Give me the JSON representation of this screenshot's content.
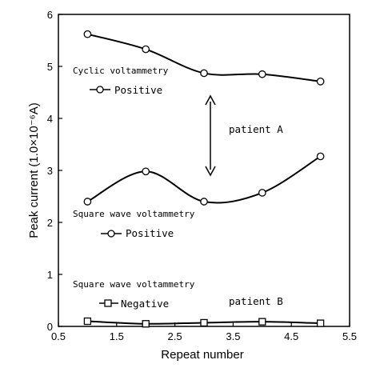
{
  "chart_data": {
    "type": "line",
    "xlabel": "Repeat number",
    "ylabel": "Peak current (1.0×10⁻⁶A)",
    "xlim": [
      0.5,
      5.5
    ],
    "ylim": [
      0,
      6
    ],
    "xticks": [
      "0.5",
      "1.5",
      "2.5",
      "3.5",
      "4.5",
      "5.5"
    ],
    "yticks": [
      "0",
      "1",
      "2",
      "3",
      "4",
      "5",
      "6"
    ],
    "grid": false,
    "series": [
      {
        "name": "Cyclic voltammetry Positive",
        "marker": "circle",
        "x": [
          1,
          2,
          3,
          4,
          5
        ],
        "values": [
          5.62,
          5.33,
          4.87,
          4.85,
          4.71
        ]
      },
      {
        "name": "Square wave voltammetry Positive",
        "marker": "circle",
        "x": [
          1,
          2,
          3,
          4,
          5
        ],
        "values": [
          2.4,
          2.98,
          2.4,
          2.57,
          3.27
        ]
      },
      {
        "name": "Square wave voltammetry Negative",
        "marker": "square",
        "x": [
          1,
          2,
          3,
          4,
          5
        ],
        "values": [
          0.1,
          0.05,
          0.07,
          0.09,
          0.06
        ]
      }
    ],
    "annotations": {
      "cv_title": "Cyclic voltammetry",
      "cv_legend": "Positive",
      "swv_pos_title": "Square wave voltammetry",
      "swv_pos_legend": "Positive",
      "swv_neg_title": "Square wave voltammetry",
      "swv_neg_legend": "Negative",
      "patient_a": "patient A",
      "patient_b": "patient B"
    }
  }
}
